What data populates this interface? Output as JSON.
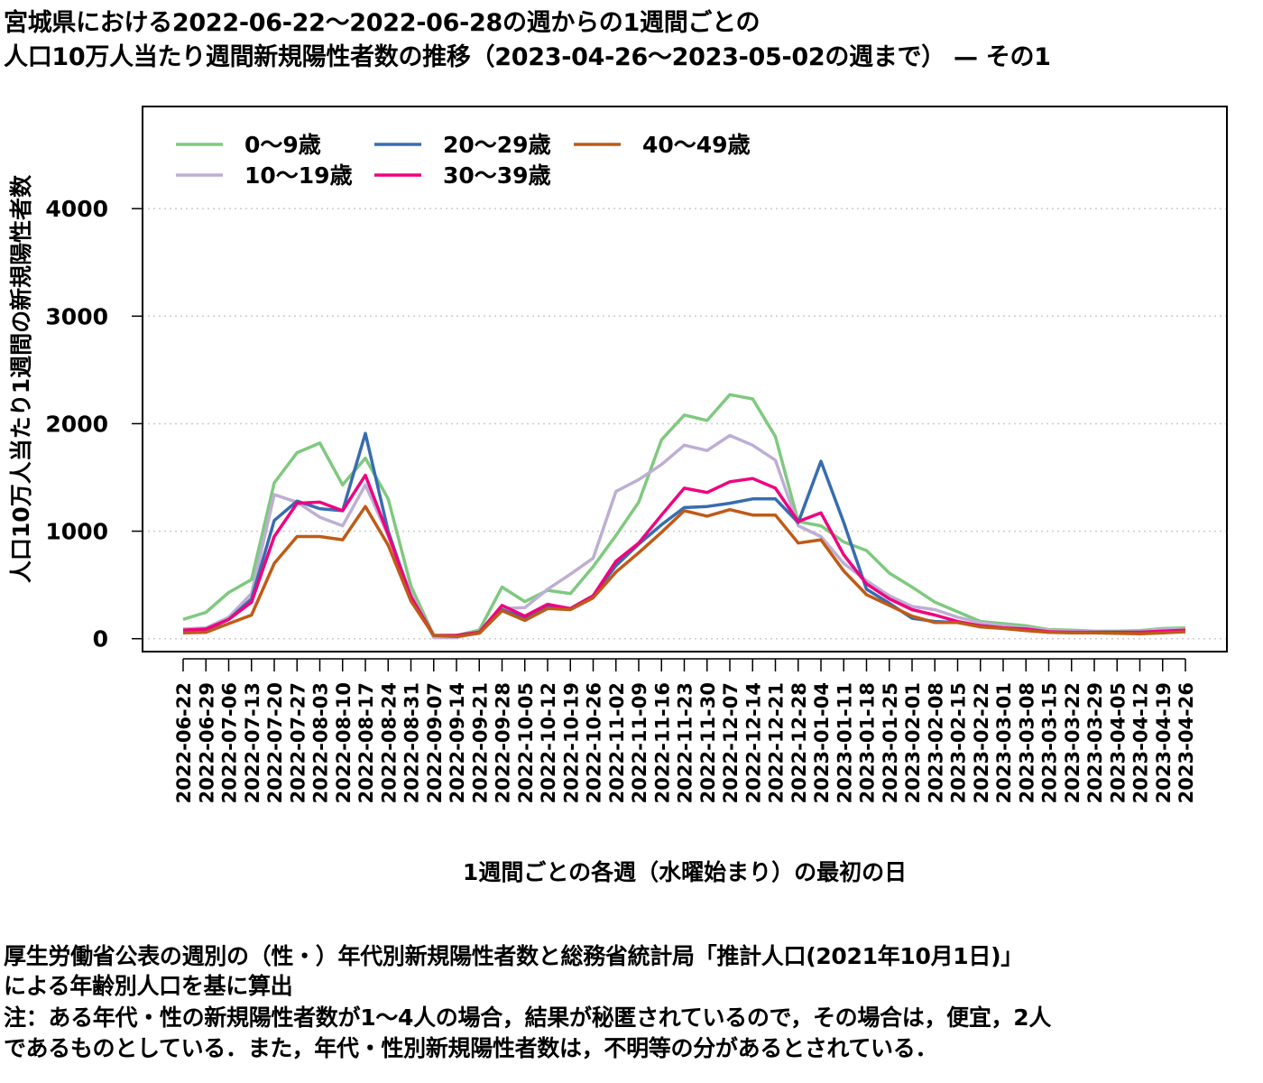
{
  "title_line1": "宮城県における2022-06-22〜2022-06-28の週からの1週間ごとの",
  "title_line2": "人口10万人当たり週間新規陽性者数の推移（2023-04-26〜2023-05-02の週まで） — その1",
  "notes": [
    "厚生労働省公表の週別の（性・）年代別新規陽性者数と総務省統計局「推計人口(2021年10月1日)」",
    "による年齢別人口を基に算出",
    "注：ある年代・性の新規陽性者数が1〜4人の場合，結果が秘匿されているので，その場合は，便宜，2人",
    "であるものとしている．また，年代・性別新規陽性者数は，不明等の分があるとされている．"
  ],
  "chart_data": {
    "type": "line",
    "title": "宮城県における2022-06-22〜2022-06-28の週からの1週間ごとの人口10万人当たり週間新規陽性者数の推移（2023-04-26〜2023-05-02の週まで） — その1",
    "xlabel": "1週間ごとの各週（水曜始まり）の最初の日",
    "ylabel": "人口10万人当たり1週間の新規陽性者数",
    "ylim": [
      -120,
      4950
    ],
    "yticks": [
      0,
      1000,
      2000,
      3000,
      4000
    ],
    "grid": "horizontal dotted",
    "legend_position": "top-left",
    "categories": [
      "2022-06-22",
      "2022-06-29",
      "2022-07-06",
      "2022-07-13",
      "2022-07-20",
      "2022-07-27",
      "2022-08-03",
      "2022-08-10",
      "2022-08-17",
      "2022-08-24",
      "2022-08-31",
      "2022-09-07",
      "2022-09-14",
      "2022-09-21",
      "2022-09-28",
      "2022-10-05",
      "2022-10-12",
      "2022-10-19",
      "2022-10-26",
      "2022-11-02",
      "2022-11-09",
      "2022-11-16",
      "2022-11-23",
      "2022-11-30",
      "2022-12-07",
      "2022-12-14",
      "2022-12-21",
      "2022-12-28",
      "2023-01-04",
      "2023-01-11",
      "2023-01-18",
      "2023-01-25",
      "2023-02-01",
      "2023-02-08",
      "2023-02-15",
      "2023-02-22",
      "2023-03-01",
      "2023-03-08",
      "2023-03-15",
      "2023-03-22",
      "2023-03-29",
      "2023-04-05",
      "2023-04-12",
      "2023-04-19",
      "2023-04-26"
    ],
    "series": [
      {
        "name": "0〜9歳",
        "color": "#7fc97f",
        "values": [
          180,
          245,
          430,
          550,
          1450,
          1730,
          1820,
          1430,
          1680,
          1300,
          490,
          30,
          30,
          80,
          480,
          345,
          450,
          420,
          670,
          960,
          1270,
          1850,
          2080,
          2030,
          2270,
          2230,
          1880,
          1090,
          1050,
          900,
          820,
          610,
          480,
          340,
          250,
          160,
          140,
          120,
          85,
          80,
          70,
          70,
          75,
          95,
          100
        ]
      },
      {
        "name": "10〜19歳",
        "color": "#beaed4",
        "values": [
          90,
          100,
          200,
          420,
          1340,
          1270,
          1130,
          1050,
          1430,
          960,
          420,
          10,
          10,
          60,
          280,
          290,
          460,
          600,
          750,
          1370,
          1480,
          1620,
          1800,
          1750,
          1890,
          1800,
          1660,
          1050,
          950,
          700,
          540,
          400,
          300,
          270,
          200,
          150,
          120,
          100,
          80,
          70,
          65,
          60,
          65,
          90,
          90
        ]
      },
      {
        "name": "20〜29歳",
        "color": "#386cb0",
        "values": [
          70,
          80,
          180,
          370,
          1100,
          1280,
          1210,
          1190,
          1910,
          1000,
          380,
          30,
          30,
          60,
          270,
          190,
          290,
          280,
          400,
          680,
          880,
          1060,
          1220,
          1230,
          1260,
          1300,
          1300,
          1080,
          1650,
          1080,
          460,
          330,
          190,
          160,
          150,
          120,
          100,
          85,
          60,
          60,
          60,
          60,
          60,
          70,
          75
        ]
      },
      {
        "name": "30〜39歳",
        "color": "#f0027f",
        "values": [
          80,
          90,
          180,
          340,
          950,
          1260,
          1270,
          1190,
          1520,
          970,
          390,
          30,
          30,
          60,
          310,
          210,
          320,
          280,
          400,
          720,
          890,
          1150,
          1400,
          1360,
          1460,
          1490,
          1400,
          1090,
          1170,
          780,
          510,
          370,
          270,
          220,
          160,
          120,
          100,
          90,
          65,
          60,
          60,
          60,
          60,
          70,
          80
        ]
      },
      {
        "name": "40〜49歳",
        "color": "#bf5b17",
        "values": [
          55,
          60,
          140,
          220,
          700,
          950,
          950,
          920,
          1230,
          870,
          350,
          30,
          20,
          50,
          260,
          170,
          280,
          270,
          380,
          620,
          800,
          990,
          1190,
          1140,
          1200,
          1150,
          1150,
          890,
          920,
          630,
          410,
          310,
          210,
          150,
          150,
          110,
          95,
          75,
          60,
          55,
          55,
          50,
          45,
          55,
          65
        ]
      }
    ]
  }
}
